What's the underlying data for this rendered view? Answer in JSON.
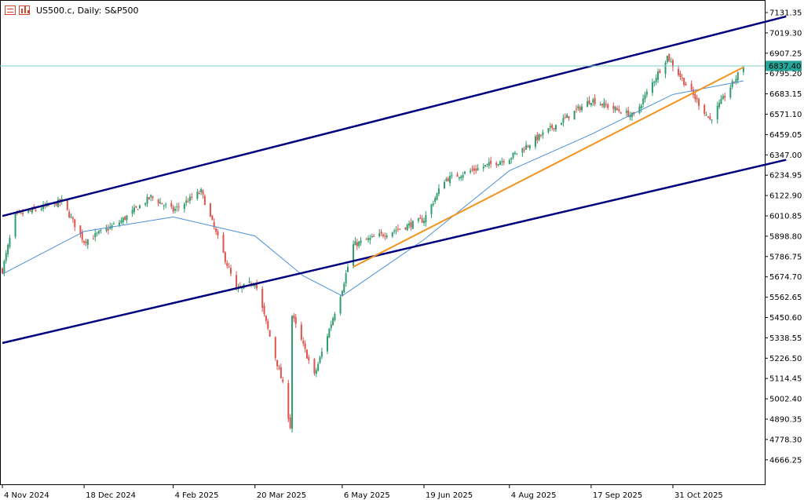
{
  "header": {
    "symbol": "US500.c, Daily:",
    "name": "S&P500",
    "icons": [
      "chart-list-icon",
      "chart-bars-icon"
    ]
  },
  "current_price_label": "6837.40",
  "chart_data": {
    "type": "candlestick",
    "title": "US500.c, Daily: S&P500",
    "y_ticks": [
      "7131.35",
      "7019.30",
      "6907.25",
      "6795.20",
      "6683.15",
      "6571.10",
      "6459.05",
      "6347.00",
      "6234.95",
      "6122.90",
      "6010.85",
      "5898.80",
      "5786.75",
      "5674.70",
      "5562.65",
      "5450.60",
      "5338.55",
      "5226.50",
      "5114.45",
      "5002.40",
      "4890.35",
      "4778.30",
      "4666.25"
    ],
    "x_ticks": [
      "4 Nov 2024",
      "18 Dec 2024",
      "4 Feb 2025",
      "20 Mar 2025",
      "6 May 2025",
      "19 Jun 2025",
      "4 Aug 2025",
      "17 Sep 2025",
      "31 Oct 2025"
    ],
    "ylim": [
      4619.5,
      7180.9
    ],
    "colors": {
      "bull": "#2e9c6c",
      "bear": "#e0524c",
      "ma": "#4a90d9",
      "channel": "#00007f",
      "trend": "#f5921e",
      "price_line": "#7fcfc4",
      "price_label_bg": "#26a69a"
    },
    "ma_label": "Moving average",
    "key_closes": [
      {
        "date": "4 Nov 2024",
        "value": 5712
      },
      {
        "date": "11 Nov 2024",
        "value": 6010
      },
      {
        "date": "6 Dec 2024",
        "value": 6090
      },
      {
        "date": "18 Dec 2024",
        "value": 5870
      },
      {
        "date": "6 Jan 2025",
        "value": 5975
      },
      {
        "date": "23 Jan 2025",
        "value": 6115
      },
      {
        "date": "4 Feb 2025",
        "value": 6040
      },
      {
        "date": "19 Feb 2025",
        "value": 6145
      },
      {
        "date": "10 Mar 2025",
        "value": 5600
      },
      {
        "date": "20 Mar 2025",
        "value": 5650
      },
      {
        "date": "4 Apr 2025",
        "value": 5080
      },
      {
        "date": "8 Apr 2025",
        "value": 4850
      },
      {
        "date": "9 Apr 2025",
        "value": 5460
      },
      {
        "date": "21 Apr 2025",
        "value": 5130
      },
      {
        "date": "6 May 2025",
        "value": 5610
      },
      {
        "date": "12 May 2025",
        "value": 5850
      },
      {
        "date": "19 Jun 2025",
        "value": 5990
      },
      {
        "date": "30 Jun 2025",
        "value": 6210
      },
      {
        "date": "4 Aug 2025",
        "value": 6330
      },
      {
        "date": "17 Sep 2025",
        "value": 6650
      },
      {
        "date": "10 Oct 2025",
        "value": 6560
      },
      {
        "date": "28 Oct 2025",
        "value": 6890
      },
      {
        "date": "31 Oct 2025",
        "value": 6840
      },
      {
        "date": "20 Nov 2025",
        "value": 6540
      },
      {
        "date": "8 Dec 2025",
        "value": 6837.4
      }
    ],
    "moving_average": [
      {
        "date": "4 Nov 2024",
        "value": 5690
      },
      {
        "date": "18 Dec 2024",
        "value": 5925
      },
      {
        "date": "4 Feb 2025",
        "value": 6005
      },
      {
        "date": "20 Mar 2025",
        "value": 5900
      },
      {
        "date": "15 Apr 2025",
        "value": 5680
      },
      {
        "date": "6 May 2025",
        "value": 5570
      },
      {
        "date": "19 Jun 2025",
        "value": 5880
      },
      {
        "date": "4 Aug 2025",
        "value": 6260
      },
      {
        "date": "17 Sep 2025",
        "value": 6460
      },
      {
        "date": "31 Oct 2025",
        "value": 6680
      },
      {
        "date": "8 Dec 2025",
        "value": 6755
      }
    ],
    "channel_upper": [
      {
        "date": "4 Nov 2024",
        "value": 6010
      },
      {
        "date": "31 Dec 2025",
        "value": 7110
      }
    ],
    "channel_lower": [
      {
        "date": "4 Nov 2024",
        "value": 5310
      },
      {
        "date": "31 Dec 2025",
        "value": 6320
      }
    ],
    "trendline": [
      {
        "date": "12 May 2025",
        "value": 5730
      },
      {
        "date": "8 Dec 2025",
        "value": 6830
      }
    ],
    "price_line": 6837.4
  }
}
